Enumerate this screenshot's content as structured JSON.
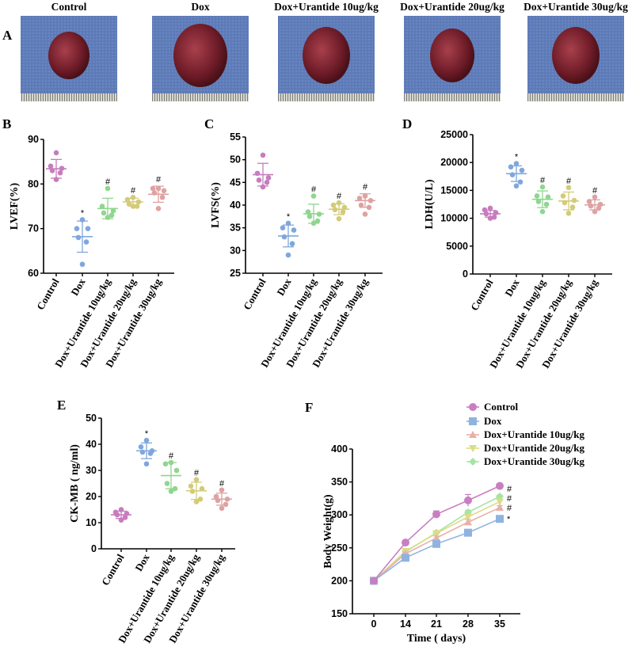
{
  "panel_a": {
    "label": "A",
    "photos": [
      {
        "title": "Control"
      },
      {
        "title": "Dox"
      },
      {
        "title": "Dox+Urantide 10ug/kg"
      },
      {
        "title": "Dox+Urantide 20ug/kg"
      },
      {
        "title": "Dox+Urantide 30ug/kg"
      }
    ]
  },
  "chart_data": [
    {
      "panel": "B",
      "type": "scatter",
      "ylabel": "LVEF(%)",
      "ylim": [
        60,
        90
      ],
      "yticks": [
        60,
        70,
        80,
        90
      ],
      "categories": [
        "Control",
        "Dox",
        "Dox+Urantide 10ug/kg",
        "Dox+Urantide 20ug/kg",
        "Dox+Urantide 30ug/kg"
      ],
      "colors": [
        "#c77cbd",
        "#7fa7dc",
        "#8fd68f",
        "#d3cb78",
        "#dea2a2"
      ],
      "points": [
        [
          87,
          84,
          83.5,
          83,
          82.5,
          81
        ],
        [
          72,
          70,
          70,
          68,
          67,
          62
        ],
        [
          79,
          75,
          74,
          73.5,
          73,
          72.5
        ],
        [
          77,
          76.5,
          76,
          75.5,
          75,
          75
        ],
        [
          79,
          79,
          78.5,
          78,
          77,
          74.5
        ]
      ],
      "mean": [
        83.4,
        68.2,
        74.5,
        76,
        77.7
      ],
      "sd": [
        2.1,
        3.5,
        2.3,
        0.8,
        1.8
      ],
      "annotations": [
        "",
        "*",
        "#",
        "#",
        "#"
      ]
    },
    {
      "panel": "C",
      "type": "scatter",
      "ylabel": "LVFS(%)",
      "ylim": [
        25,
        55
      ],
      "yticks": [
        25,
        30,
        35,
        40,
        45,
        50,
        55
      ],
      "categories": [
        "Control",
        "Dox",
        "Dox+Urantide 10ug/kg",
        "Dox+Urantide 20ug/kg",
        "Dox+Urantide 30ug/kg"
      ],
      "colors": [
        "#c77cbd",
        "#7fa7dc",
        "#8fd68f",
        "#d3cb78",
        "#dea2a2"
      ],
      "points": [
        [
          51,
          47,
          46,
          45.5,
          45,
          44
        ],
        [
          36,
          35,
          34.5,
          33,
          31.5,
          29
        ],
        [
          42,
          38.5,
          38,
          37.5,
          36.5,
          36
        ],
        [
          40.5,
          40,
          39.5,
          39,
          38.5,
          37
        ],
        [
          42,
          41.5,
          41,
          40,
          39.5,
          38
        ]
      ],
      "mean": [
        46.7,
        33.2,
        38.1,
        39.1,
        41
      ],
      "sd": [
        2.5,
        2.4,
        2.1,
        1.2,
        1.5
      ],
      "annotations": [
        "",
        "*",
        "#",
        "#",
        "#"
      ]
    },
    {
      "panel": "D",
      "type": "scatter",
      "ylabel": "LDH(U/L)",
      "ylim": [
        0,
        25000
      ],
      "yticks": [
        0,
        5000,
        10000,
        15000,
        20000,
        25000
      ],
      "categories": [
        "Control",
        "Dox",
        "Dox+Urantide 10ug/kg",
        "Dox+Urantide 20ug/kg",
        "Dox+Urantide 30ug/kg"
      ],
      "colors": [
        "#c77cbd",
        "#7fa7dc",
        "#8fd68f",
        "#d3cb78",
        "#dea2a2"
      ],
      "points": [
        [
          11800,
          11500,
          11000,
          10800,
          10200,
          10000
        ],
        [
          19800,
          19200,
          18600,
          17800,
          16500,
          15800
        ],
        [
          15600,
          14000,
          13800,
          13000,
          12500,
          11200
        ],
        [
          15500,
          14000,
          13200,
          12800,
          12000,
          10900
        ],
        [
          13800,
          13000,
          12500,
          12200,
          11800,
          11200
        ]
      ],
      "mean": [
        10800,
        18000,
        13400,
        13100,
        12400
      ],
      "sd": [
        600,
        1400,
        1500,
        1600,
        900
      ],
      "annotations": [
        "",
        "*",
        "#",
        "#",
        "#"
      ]
    },
    {
      "panel": "E",
      "type": "scatter",
      "ylabel": "CK-MB ( ng/ml)",
      "ylim": [
        0,
        50
      ],
      "yticks": [
        0,
        10,
        20,
        30,
        40,
        50
      ],
      "categories": [
        "Control",
        "Dox",
        "Dox+Urantide 10ug/kg",
        "Dox+Urantide 20ug/kg",
        "Dox+Urantide 30ug/kg"
      ],
      "colors": [
        "#c77cbd",
        "#7fa7dc",
        "#8fd68f",
        "#d3cb78",
        "#dea2a2"
      ],
      "points": [
        [
          15,
          14,
          13.5,
          13,
          12,
          11
        ],
        [
          41.5,
          39,
          37.5,
          37,
          36.5,
          32.5
        ],
        [
          33,
          32.5,
          30,
          25,
          23,
          22
        ],
        [
          26.5,
          24,
          23,
          22,
          19,
          18
        ],
        [
          22.5,
          20,
          19,
          18.5,
          17,
          15.5
        ]
      ],
      "mean": [
        13,
        37.5,
        28,
        22.2,
        19
      ],
      "sd": [
        1.4,
        3,
        5,
        3.3,
        2.3
      ],
      "annotations": [
        "",
        "*",
        "#",
        "#",
        "#"
      ]
    },
    {
      "panel": "F",
      "type": "line",
      "xlabel": "Time ( days)",
      "ylabel": "Body Weight(g)",
      "x": [
        0,
        14,
        21,
        28,
        35
      ],
      "ylim": [
        150,
        400
      ],
      "yticks": [
        150,
        200,
        250,
        300,
        350,
        400
      ],
      "legend_position": "top-right",
      "series": [
        {
          "name": "Control",
          "marker": "circle",
          "color": "#c87fc0",
          "values": [
            200,
            258,
            301,
            322,
            344
          ],
          "err": [
            0,
            2,
            5,
            9,
            2
          ],
          "annotation": ""
        },
        {
          "name": "Dox",
          "marker": "square",
          "color": "#8fb3e0",
          "values": [
            200,
            235,
            256,
            273,
            294
          ],
          "err": [
            0,
            2,
            2,
            2,
            1
          ],
          "annotation": "*"
        },
        {
          "name": "Dox+Urantide 10ug/kg",
          "marker": "triangle-up",
          "color": "#e8b0a8",
          "values": [
            200,
            241,
            265,
            289,
            311
          ],
          "err": [
            0,
            2,
            3,
            4,
            3
          ],
          "annotation": "#"
        },
        {
          "name": "Dox+Urantide 20ug/kg",
          "marker": "triangle-down",
          "color": "#dcdc86",
          "values": [
            200,
            245,
            272,
            297,
            320
          ],
          "err": [
            0,
            2,
            2,
            3,
            3
          ],
          "annotation": "#"
        },
        {
          "name": "Dox+Urantide 30ug/kg",
          "marker": "diamond",
          "color": "#a6e4a6",
          "values": [
            200,
            244,
            273,
            304,
            328
          ],
          "err": [
            0,
            2,
            2,
            3,
            2
          ],
          "annotation": "#"
        }
      ]
    }
  ]
}
